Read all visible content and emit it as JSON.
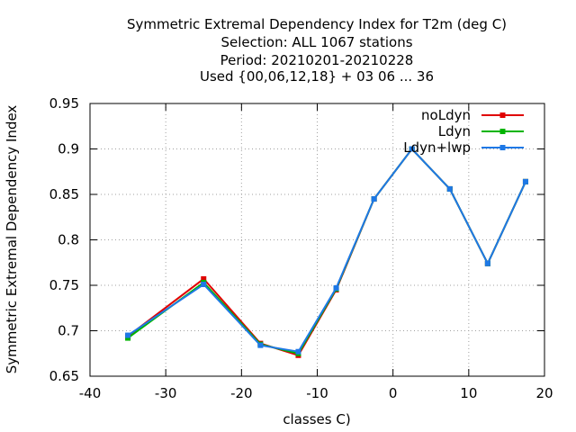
{
  "chart_data": {
    "type": "line",
    "title_lines": [
      "Symmetric Extremal Dependency Index  for T2m (deg C)",
      "Selection: ALL   1067 stations",
      "Period: 20210201-20210228",
      "Used {00,06,12,18} + 03 06 ... 36"
    ],
    "xlabel": "classes C)",
    "ylabel": "Symmetric Extremal Dependency Index",
    "xlim": [
      -40,
      20
    ],
    "ylim": [
      0.65,
      0.95
    ],
    "xticks": [
      "-40",
      "-30",
      "-20",
      "-10",
      "0",
      "10",
      "20"
    ],
    "yticks": [
      "0.65",
      "0.7",
      "0.75",
      "0.8",
      "0.85",
      "0.9",
      "0.95"
    ],
    "grid": true,
    "legend_position": "top-right",
    "x": [
      -35,
      -25,
      -17.5,
      -12.5,
      -7.5,
      -2.5,
      2.5,
      7.5,
      12.5,
      17.5
    ],
    "series": [
      {
        "name": "noLdyn",
        "color": "#e00000",
        "values": [
          0.694,
          0.757,
          0.686,
          0.673,
          0.745,
          0.845,
          0.9,
          0.856,
          0.774,
          0.864
        ]
      },
      {
        "name": "Ldyn",
        "color": "#00b400",
        "values": [
          0.692,
          0.753,
          0.685,
          0.675,
          0.746,
          0.845,
          0.9,
          0.856,
          0.774,
          0.864
        ]
      },
      {
        "name": "Ldyn+lwp",
        "color": "#1e78e6",
        "values": [
          0.695,
          0.751,
          0.684,
          0.677,
          0.747,
          0.845,
          0.9,
          0.856,
          0.774,
          0.864
        ]
      }
    ]
  }
}
